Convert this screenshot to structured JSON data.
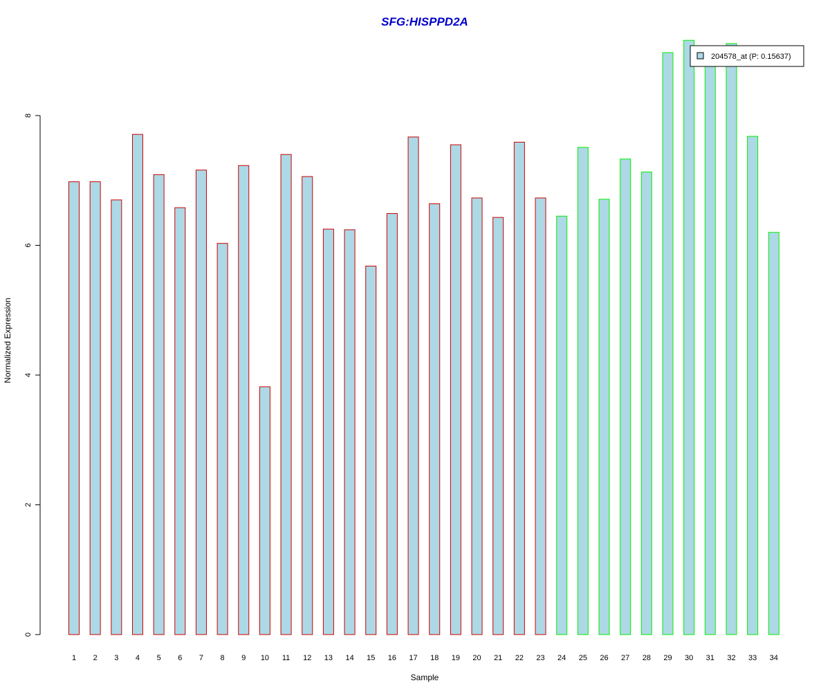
{
  "chart_data": {
    "type": "bar",
    "title": "SFG:HISPPD2A",
    "xlabel": "Sample",
    "ylabel": "Normalized Expression",
    "ylim": [
      0,
      9.2
    ],
    "yticks": [
      0,
      2,
      4,
      6,
      8
    ],
    "categories": [
      "1",
      "2",
      "3",
      "4",
      "5",
      "6",
      "7",
      "8",
      "9",
      "10",
      "11",
      "12",
      "13",
      "14",
      "15",
      "16",
      "17",
      "18",
      "19",
      "20",
      "21",
      "22",
      "23",
      "24",
      "25",
      "26",
      "27",
      "28",
      "29",
      "30",
      "31",
      "32",
      "33",
      "34"
    ],
    "values": [
      6.98,
      6.98,
      6.7,
      7.71,
      7.09,
      6.58,
      7.16,
      6.03,
      7.23,
      3.82,
      7.4,
      7.06,
      6.25,
      6.24,
      5.68,
      6.49,
      7.67,
      6.64,
      7.55,
      6.73,
      6.43,
      7.59,
      6.73,
      6.45,
      7.51,
      6.71,
      7.33,
      7.13,
      8.97,
      9.16,
      8.92,
      9.11,
      7.68,
      6.2
    ],
    "group_border_colors": [
      "#cc0000",
      "#cc0000",
      "#cc0000",
      "#cc0000",
      "#cc0000",
      "#cc0000",
      "#cc0000",
      "#cc0000",
      "#cc0000",
      "#cc0000",
      "#cc0000",
      "#cc0000",
      "#cc0000",
      "#cc0000",
      "#cc0000",
      "#cc0000",
      "#cc0000",
      "#cc0000",
      "#cc0000",
      "#cc0000",
      "#cc0000",
      "#cc0000",
      "#cc0000",
      "#00ee00",
      "#00ee00",
      "#00ee00",
      "#00ee00",
      "#00ee00",
      "#00ee00",
      "#00ee00",
      "#00ee00",
      "#00ee00",
      "#00ee00",
      "#00ee00"
    ],
    "bar_fill": "#add8e6",
    "grid": false,
    "legend": {
      "position": "top-right",
      "entries": [
        {
          "label": "204578_at (P: 0.15637)",
          "color": "#add8e6"
        }
      ]
    }
  }
}
